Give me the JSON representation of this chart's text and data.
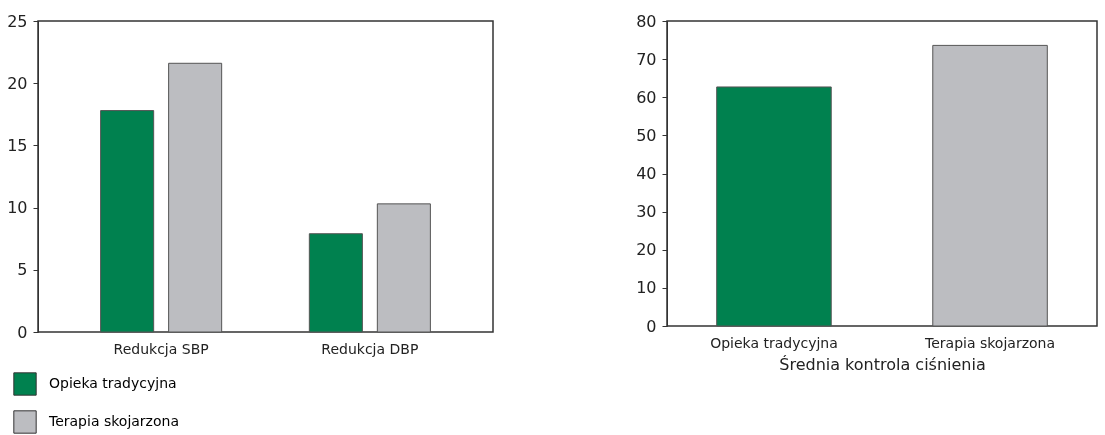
{
  "chart_data": [
    {
      "type": "bar",
      "categories": [
        "Redukcja SBP",
        "Redukcja DBP"
      ],
      "series": [
        {
          "name": "Opieka tradycyjna",
          "color": "#00814f",
          "values": [
            17.8,
            7.9
          ]
        },
        {
          "name": "Terapia skojarzona",
          "color": "#bcbdc1",
          "values": [
            21.6,
            10.3
          ]
        }
      ],
      "ylim": [
        0,
        25
      ],
      "yticks": [
        0,
        5,
        10,
        15,
        20,
        25
      ],
      "legend": "bottom left"
    },
    {
      "type": "bar",
      "categories": [
        "Opieka tradycyjna",
        "Terapia skojarzona"
      ],
      "values": [
        62.7,
        73.6
      ],
      "colors": [
        "#00814f",
        "#bcbdc1"
      ],
      "xlabel": "Średnia kontrola ciśnienia",
      "ylim": [
        0,
        80
      ],
      "yticks": [
        0,
        10,
        20,
        30,
        40,
        50,
        60,
        70,
        80
      ]
    }
  ]
}
